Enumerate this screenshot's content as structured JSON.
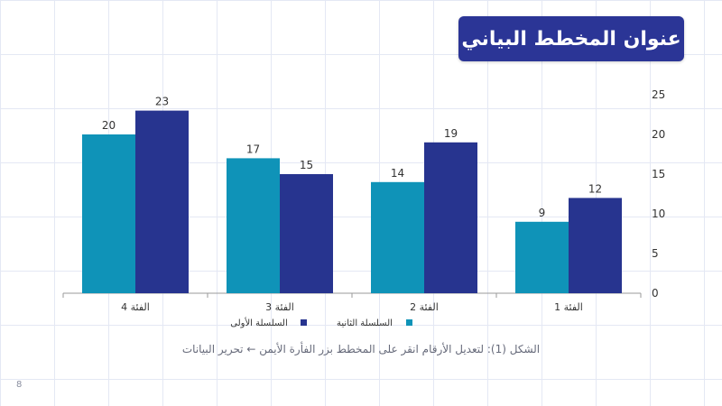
{
  "slide": {
    "title": "عنوان المخطط البياني",
    "caption": "الشكل (1): لتعديل الأرقام انقر على المخطط بزر الفأرة الأيمن ← تحرير البيانات",
    "page_number": "8"
  },
  "colors": {
    "title_bg": "#2b3596",
    "series_1": "#27348f",
    "series_2": "#0f93b8",
    "grid": "#e4e8f4",
    "text": "#333333"
  },
  "chart_data": {
    "type": "bar",
    "categories": [
      "الفئة 1",
      "الفئة 2",
      "الفئة 3",
      "الفئة 4"
    ],
    "series": [
      {
        "name": "السلسلة الأولى",
        "values": [
          12,
          19,
          15,
          23
        ],
        "color": "#27348f"
      },
      {
        "name": "السلسلة الثانية",
        "values": [
          9,
          14,
          17,
          20
        ],
        "color": "#0f93b8"
      }
    ],
    "title": "عنوان المخطط البياني",
    "xlabel": "",
    "ylabel": "",
    "ylim": [
      0,
      25
    ],
    "yticks": [
      0,
      5,
      10,
      15,
      20,
      25
    ],
    "y_axis_side": "right",
    "category_order": "right-to-left",
    "legend_position": "bottom",
    "data_labels": true,
    "grid": true
  }
}
